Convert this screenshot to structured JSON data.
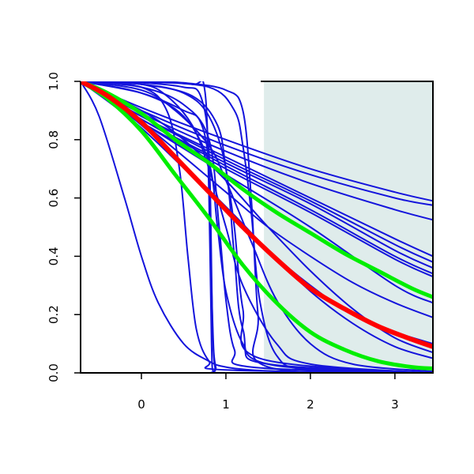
{
  "chart_data": {
    "type": "line",
    "title": "",
    "xlabel": "",
    "ylabel": "",
    "xlim": [
      -0.72,
      3.45
    ],
    "ylim": [
      0.0,
      1.0
    ],
    "x_ticks": [
      0,
      1,
      2,
      3
    ],
    "x_tick_labels": [
      "0",
      "1",
      "2",
      "3"
    ],
    "y_ticks": [
      0.0,
      0.2,
      0.4,
      0.6,
      0.8,
      1.0
    ],
    "y_tick_labels": [
      "0.0",
      "0.2",
      "0.4",
      "0.6",
      "0.8",
      "1.0"
    ],
    "grid": false,
    "shaded_region": {
      "x_start": 1.45,
      "x_end": 3.45,
      "color": "#dfeceb"
    },
    "colors": {
      "individual": "#1414dc",
      "central": "#ff0000",
      "band": "#00ee00"
    },
    "series": [
      {
        "role": "central",
        "x": [
          -0.72,
          -0.4,
          0,
          0.4,
          0.8,
          1.2,
          1.6,
          2.0,
          2.4,
          2.8,
          3.2,
          3.45
        ],
        "values": [
          1.0,
          0.95,
          0.86,
          0.74,
          0.62,
          0.5,
          0.39,
          0.29,
          0.22,
          0.16,
          0.115,
          0.09
        ]
      },
      {
        "role": "band-upper",
        "x": [
          -0.72,
          -0.4,
          0,
          0.4,
          0.8,
          1.2,
          1.6,
          2.0,
          2.4,
          2.8,
          3.2,
          3.45
        ],
        "values": [
          1.0,
          0.96,
          0.89,
          0.8,
          0.72,
          0.63,
          0.55,
          0.48,
          0.41,
          0.35,
          0.29,
          0.26
        ]
      },
      {
        "role": "band-lower",
        "x": [
          -0.72,
          -0.4,
          0,
          0.4,
          0.8,
          1.2,
          1.6,
          2.0,
          2.4,
          2.8,
          3.2,
          3.45
        ],
        "values": [
          1.0,
          0.94,
          0.83,
          0.68,
          0.53,
          0.37,
          0.24,
          0.14,
          0.08,
          0.04,
          0.02,
          0.015
        ]
      },
      {
        "role": "individual",
        "x": [
          -0.72,
          0,
          1,
          2,
          3,
          3.45
        ],
        "values": [
          1.0,
          0.91,
          0.8,
          0.7,
          0.62,
          0.59
        ]
      },
      {
        "role": "individual",
        "x": [
          -0.72,
          0,
          1,
          2,
          3,
          3.45
        ],
        "values": [
          1.0,
          0.9,
          0.78,
          0.68,
          0.6,
          0.575
        ]
      },
      {
        "role": "individual",
        "x": [
          -0.72,
          0,
          1,
          2,
          3,
          3.45
        ],
        "values": [
          1.0,
          0.89,
          0.76,
          0.65,
          0.56,
          0.525
        ]
      },
      {
        "role": "individual",
        "x": [
          -0.72,
          0,
          1,
          2,
          3,
          3.45
        ],
        "values": [
          1.0,
          0.88,
          0.74,
          0.6,
          0.46,
          0.4
        ]
      },
      {
        "role": "individual",
        "x": [
          -0.72,
          0,
          1,
          2,
          3,
          3.45
        ],
        "values": [
          1.0,
          0.88,
          0.73,
          0.59,
          0.44,
          0.38
        ]
      },
      {
        "role": "individual",
        "x": [
          -0.72,
          0,
          1,
          2,
          3,
          3.45
        ],
        "values": [
          1.0,
          0.87,
          0.72,
          0.58,
          0.42,
          0.36
        ]
      },
      {
        "role": "individual",
        "x": [
          -0.72,
          0,
          1,
          2,
          3,
          3.45
        ],
        "values": [
          1.0,
          0.87,
          0.71,
          0.56,
          0.4,
          0.34
        ]
      },
      {
        "role": "individual",
        "x": [
          -0.72,
          0,
          1,
          2,
          3,
          3.45
        ],
        "values": [
          1.0,
          0.86,
          0.7,
          0.55,
          0.39,
          0.33
        ]
      },
      {
        "role": "individual",
        "x": [
          -0.72,
          0,
          1,
          2,
          3,
          3.45
        ],
        "values": [
          1.0,
          0.86,
          0.68,
          0.5,
          0.3,
          0.24
        ]
      },
      {
        "role": "individual",
        "x": [
          -0.72,
          0,
          1,
          1.5,
          2,
          2.5,
          3,
          3.45
        ],
        "values": [
          1.0,
          0.86,
          0.62,
          0.5,
          0.4,
          0.31,
          0.24,
          0.19
        ]
      },
      {
        "role": "individual",
        "x": [
          -0.72,
          0,
          1,
          1.5,
          2,
          2.5,
          3,
          3.45
        ],
        "values": [
          1.0,
          0.84,
          0.56,
          0.42,
          0.3,
          0.2,
          0.14,
          0.1
        ]
      },
      {
        "role": "individual",
        "x": [
          -0.72,
          0,
          1,
          1.5,
          2,
          2.5,
          3,
          3.45
        ],
        "values": [
          1.0,
          0.85,
          0.57,
          0.42,
          0.28,
          0.17,
          0.09,
          0.05
        ]
      },
      {
        "role": "individual",
        "x": [
          -0.72,
          -0.5,
          -0.2,
          0,
          0.2,
          0.5,
          0.8,
          1.0,
          1.4,
          2.0,
          3.45
        ],
        "values": [
          1.0,
          0.88,
          0.6,
          0.4,
          0.24,
          0.1,
          0.04,
          0.02,
          0.008,
          0.003,
          0.0
        ]
      },
      {
        "role": "individual",
        "x": [
          -0.72,
          0,
          0.5,
          0.7,
          0.8,
          0.83,
          0.87,
          1.0,
          3.45
        ],
        "values": [
          1.0,
          0.96,
          0.9,
          0.86,
          0.7,
          0.3,
          0.02,
          0.0,
          0.0
        ]
      },
      {
        "role": "individual",
        "x": [
          -0.72,
          0,
          0.6,
          0.75,
          0.8,
          0.83,
          0.86,
          1.0,
          3.45
        ],
        "values": [
          1.0,
          0.999,
          0.99,
          0.97,
          0.6,
          0.1,
          0.0,
          0.0,
          0.0
        ]
      },
      {
        "role": "individual",
        "x": [
          -0.72,
          0,
          0.5,
          0.7,
          0.8,
          0.84,
          0.88,
          1.0,
          3.45
        ],
        "values": [
          1.0,
          0.995,
          0.98,
          0.95,
          0.75,
          0.2,
          0.02,
          0.0,
          0.0
        ]
      },
      {
        "role": "individual",
        "x": [
          -0.72,
          0,
          0.3,
          0.45,
          0.55,
          0.65,
          0.8,
          1.0,
          3.45
        ],
        "values": [
          1.0,
          0.98,
          0.9,
          0.7,
          0.4,
          0.15,
          0.04,
          0.01,
          0.0
        ]
      },
      {
        "role": "individual",
        "x": [
          -0.72,
          0,
          0.5,
          0.8,
          0.92,
          1.0,
          1.1,
          1.3,
          3.45
        ],
        "values": [
          1.0,
          0.98,
          0.92,
          0.8,
          0.5,
          0.25,
          0.08,
          0.02,
          0.0
        ]
      },
      {
        "role": "individual",
        "x": [
          -0.72,
          0,
          0.5,
          0.8,
          0.9,
          1.0,
          1.2,
          1.5,
          3.45
        ],
        "values": [
          1.0,
          0.96,
          0.88,
          0.72,
          0.5,
          0.28,
          0.1,
          0.03,
          0.0
        ]
      },
      {
        "role": "individual",
        "x": [
          -0.72,
          0,
          0.5,
          0.8,
          1.0,
          1.1,
          1.2,
          1.5,
          3.45
        ],
        "values": [
          1.0,
          0.99,
          0.96,
          0.88,
          0.7,
          0.4,
          0.15,
          0.03,
          0.0
        ]
      },
      {
        "role": "individual",
        "x": [
          -0.72,
          0,
          0.6,
          0.9,
          1.0,
          1.1,
          1.2,
          1.4,
          3.45
        ],
        "values": [
          1.0,
          0.99,
          0.95,
          0.85,
          0.7,
          0.5,
          0.22,
          0.05,
          0.0
        ]
      },
      {
        "role": "individual",
        "x": [
          -0.72,
          0,
          0.5,
          1.0,
          1.2,
          1.3,
          1.38,
          1.5,
          3.45
        ],
        "values": [
          1.0,
          0.999,
          0.995,
          0.97,
          0.9,
          0.6,
          0.2,
          0.02,
          0.0
        ]
      },
      {
        "role": "individual",
        "x": [
          -0.72,
          0,
          0.8,
          1.1,
          1.2,
          1.3,
          1.4,
          1.6,
          2.0,
          3.45
        ],
        "values": [
          1.0,
          0.998,
          0.98,
          0.9,
          0.78,
          0.55,
          0.25,
          0.06,
          0.01,
          0.0
        ]
      },
      {
        "role": "individual",
        "x": [
          -0.72,
          0,
          0.3,
          0.6,
          0.8,
          1.0,
          1.2,
          1.6,
          2.0,
          3.45
        ],
        "values": [
          1.0,
          0.99,
          0.95,
          0.85,
          0.7,
          0.5,
          0.3,
          0.1,
          0.03,
          0.0
        ]
      },
      {
        "role": "individual",
        "x": [
          -0.72,
          0,
          0.4,
          0.8,
          1.0,
          1.3,
          1.6,
          2.0,
          2.5,
          3.45
        ],
        "values": [
          1.0,
          0.97,
          0.9,
          0.78,
          0.66,
          0.45,
          0.25,
          0.1,
          0.03,
          0.005
        ]
      },
      {
        "role": "individual",
        "x": [
          -0.72,
          0,
          0.5,
          1.0,
          1.5,
          2.0,
          2.5,
          3.0,
          3.45
        ],
        "values": [
          1.0,
          0.9,
          0.8,
          0.66,
          0.5,
          0.35,
          0.22,
          0.12,
          0.07
        ]
      }
    ]
  }
}
